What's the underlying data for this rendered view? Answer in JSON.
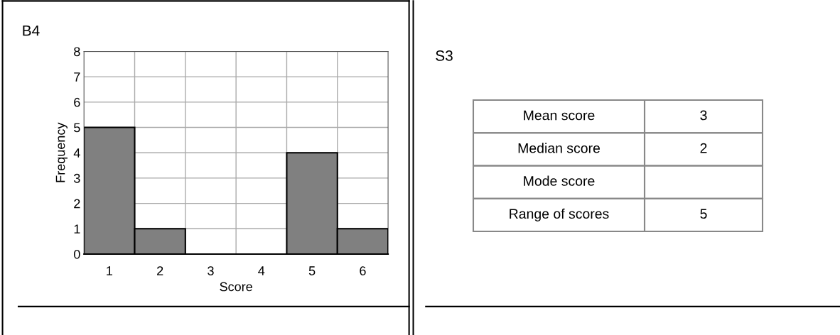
{
  "chart_data": [
    {
      "type": "bar",
      "title": "B4",
      "xlabel": "Score",
      "ylabel": "Frequency",
      "categories": [
        "1",
        "2",
        "3",
        "4",
        "5",
        "6"
      ],
      "values": [
        5,
        1,
        0,
        0,
        4,
        1
      ],
      "color": "#808080",
      "ylim": [
        0,
        8
      ],
      "yticks": [
        0,
        1,
        2,
        3,
        4,
        5,
        6,
        7,
        8
      ],
      "grid": true
    },
    {
      "type": "other",
      "title": "S3",
      "cell_labels": [
        [
          "Mean score",
          "3"
        ],
        [
          "Median score",
          "2"
        ],
        [
          "Mode score",
          null
        ],
        [
          "Range of scores",
          "5"
        ]
      ]
    }
  ]
}
